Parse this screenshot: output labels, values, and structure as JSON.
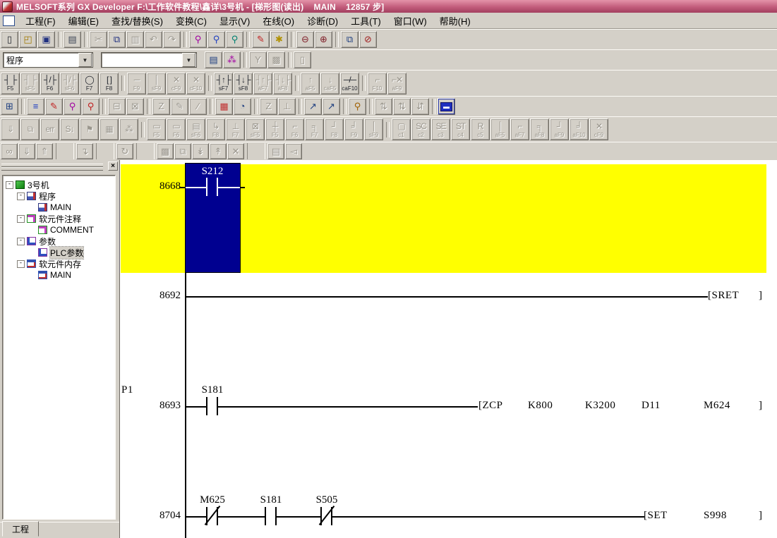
{
  "window": {
    "title": "MELSOFT系列 GX Developer F:\\工作软件教程\\鑫详\\3号机 - [梯形图(读出)    MAIN    12857 步]"
  },
  "menu": {
    "items": [
      {
        "name": "menu-project",
        "label": "工程(F)"
      },
      {
        "name": "menu-edit",
        "label": "编辑(E)"
      },
      {
        "name": "menu-find-replace",
        "label": "查找/替换(S)"
      },
      {
        "name": "menu-convert",
        "label": "变换(C)"
      },
      {
        "name": "menu-view",
        "label": "显示(V)"
      },
      {
        "name": "menu-online",
        "label": "在线(O)"
      },
      {
        "name": "menu-diagnostics",
        "label": "诊断(D)"
      },
      {
        "name": "menu-tools",
        "label": "工具(T)"
      },
      {
        "name": "menu-window",
        "label": "窗口(W)"
      },
      {
        "name": "menu-help",
        "label": "帮助(H)"
      }
    ]
  },
  "toolbar1": {
    "buttons": [
      {
        "name": "new-project-button",
        "glyph": "▯",
        "enabled": true
      },
      {
        "name": "open-project-button",
        "glyph": "◰",
        "enabled": true,
        "color": "#a07800"
      },
      {
        "name": "save-project-button",
        "glyph": "▣",
        "enabled": true,
        "color": "#203080"
      },
      {
        "sep": true
      },
      {
        "name": "print-button",
        "glyph": "▤",
        "enabled": true,
        "color": "#404858"
      },
      {
        "sep": true
      },
      {
        "name": "cut-button",
        "glyph": "✂",
        "enabled": false
      },
      {
        "name": "copy-button",
        "glyph": "⧉",
        "enabled": true,
        "color": "#203080"
      },
      {
        "name": "paste-button",
        "glyph": "▥",
        "enabled": false
      },
      {
        "name": "undo-button",
        "glyph": "↶",
        "enabled": false
      },
      {
        "name": "redo-button",
        "glyph": "↷",
        "enabled": false
      },
      {
        "sep": true
      },
      {
        "name": "find-device-button",
        "glyph": "⚲",
        "enabled": true,
        "color": "#a000a0"
      },
      {
        "name": "find-instruction-button",
        "glyph": "⚲",
        "enabled": true,
        "color": "#2040c0"
      },
      {
        "name": "find-string-button",
        "glyph": "⚲",
        "enabled": true,
        "color": "#008070"
      },
      {
        "sep": true
      },
      {
        "name": "replace-device-button",
        "glyph": "✎",
        "enabled": true,
        "color": "#c02020"
      },
      {
        "name": "replace-instruction-button",
        "glyph": "✱",
        "enabled": true,
        "color": "#b09000"
      },
      {
        "sep": true
      },
      {
        "name": "zoom-out-button",
        "glyph": "⊖",
        "enabled": true,
        "color": "#80202a"
      },
      {
        "name": "zoom-in-button",
        "glyph": "⊕",
        "enabled": true,
        "color": "#80202a"
      },
      {
        "sep": true
      },
      {
        "name": "new-window-button",
        "glyph": "⧉",
        "enabled": true,
        "color": "#204080"
      },
      {
        "name": "program-check-button",
        "glyph": "⊘",
        "enabled": true,
        "color": "#a02020"
      }
    ]
  },
  "toolbar2": {
    "program_combo_value": "程序",
    "data_combo_value": "",
    "arrow": "▼",
    "buttons": [
      {
        "name": "ladder-monitor-button",
        "glyph": "▤",
        "enabled": true,
        "color": "#204080"
      },
      {
        "name": "network-parameter-button",
        "glyph": "⁂",
        "enabled": true,
        "color": "#a000a0"
      },
      {
        "sep": true
      },
      {
        "name": "label-program-button",
        "glyph": "Y",
        "enabled": false
      },
      {
        "name": "macro-button",
        "glyph": "▩",
        "enabled": false
      },
      {
        "sep": true
      },
      {
        "name": "vertical-window-button",
        "glyph": "▯",
        "enabled": false
      }
    ]
  },
  "toolbar3": {
    "buttons": [
      {
        "name": "open-contact-button",
        "glyph": "┤ ├",
        "label": "F5",
        "enabled": true
      },
      {
        "name": "open-contact-parallel-button",
        "glyph": "┤ ├",
        "label": "sF5",
        "enabled": false
      },
      {
        "name": "closed-contact-button",
        "glyph": "┤/├",
        "label": "F6",
        "enabled": true
      },
      {
        "name": "closed-contact-parallel-button",
        "glyph": "┤/├",
        "label": "sF6",
        "enabled": false
      },
      {
        "name": "coil-button",
        "glyph": "◯",
        "label": "F7",
        "enabled": true
      },
      {
        "name": "application-instruction-button",
        "glyph": "[ ]",
        "label": "F8",
        "enabled": true
      },
      {
        "sep": true
      },
      {
        "name": "horizontal-line-button",
        "glyph": "─",
        "label": "F9",
        "enabled": false
      },
      {
        "name": "vertical-line-button",
        "glyph": "│",
        "label": "sF9",
        "enabled": false
      },
      {
        "name": "delete-horizontal-line-button",
        "glyph": "✕",
        "label": "cF9",
        "enabled": false
      },
      {
        "name": "delete-vertical-line-button",
        "glyph": "✕",
        "label": "cF10",
        "enabled": false
      },
      {
        "sep": true
      },
      {
        "name": "rising-pulse-button",
        "glyph": "┤↑├",
        "label": "sF7",
        "enabled": true
      },
      {
        "name": "falling-pulse-button",
        "glyph": "┤↓├",
        "label": "sF8",
        "enabled": true
      },
      {
        "name": "rising-pulse-parallel-button",
        "glyph": "┤↑├",
        "label": "aF7",
        "enabled": false
      },
      {
        "name": "falling-pulse-parallel-button",
        "glyph": "┤↓├",
        "label": "aF8",
        "enabled": false
      },
      {
        "sep": true
      },
      {
        "name": "pulse-up-button",
        "glyph": "↑",
        "label": "aF5",
        "enabled": false
      },
      {
        "name": "pulse-down-button",
        "glyph": "↓",
        "label": "caF5",
        "enabled": false
      },
      {
        "name": "invert-operation-button",
        "glyph": "─/─",
        "label": "caF10",
        "enabled": true
      },
      {
        "sep": true
      },
      {
        "name": "line-input-button",
        "glyph": "⌐",
        "label": "F10",
        "enabled": false
      },
      {
        "name": "delete-line-button",
        "glyph": "⌐✕",
        "label": "aF9",
        "enabled": false
      }
    ]
  },
  "toolbar4": {
    "buttons": [
      {
        "name": "ladder-list-toggle-button",
        "glyph": "⊞",
        "enabled": true,
        "color": "#204080"
      },
      {
        "sep": true
      },
      {
        "name": "comment-display-button",
        "glyph": "≡",
        "enabled": true,
        "color": "#2040c0"
      },
      {
        "name": "statement-edit-button",
        "glyph": "✎",
        "enabled": true,
        "color": "#c02020"
      },
      {
        "name": "find-contact-button",
        "glyph": "⚲",
        "enabled": true,
        "color": "#a000a0"
      },
      {
        "name": "ladder-edit-button",
        "glyph": "⚲",
        "enabled": true,
        "color": "#c02020"
      },
      {
        "sep": true
      },
      {
        "name": "device-test-button",
        "glyph": "⊟",
        "enabled": false
      },
      {
        "name": "device-test-off-button",
        "glyph": "⊠",
        "enabled": false
      },
      {
        "sep": true
      },
      {
        "name": "sampling-trace-button",
        "glyph": "Z",
        "enabled": false
      },
      {
        "name": "write-during-run-button",
        "glyph": "✎",
        "enabled": false
      },
      {
        "name": "partial-edit-button",
        "glyph": "∕",
        "enabled": false
      },
      {
        "sep": true
      },
      {
        "name": "device-batch-monitor-button",
        "glyph": "▦",
        "enabled": true,
        "color": "#c03030"
      },
      {
        "name": "monitor-watch-button",
        "glyph": "◔",
        "enabled": true,
        "color": "#204080"
      },
      {
        "sep": true
      },
      {
        "name": "z-register-button",
        "glyph": "Z",
        "enabled": false
      },
      {
        "name": "t-monitor-button",
        "glyph": "⊥",
        "enabled": false
      },
      {
        "sep": true
      },
      {
        "name": "open-window-button",
        "glyph": "↗",
        "enabled": true,
        "color": "#204080"
      },
      {
        "name": "open-window-front-button",
        "glyph": "↗",
        "enabled": true,
        "color": "#204080"
      },
      {
        "sep": true
      },
      {
        "name": "monitor-find-button",
        "glyph": "⚲",
        "enabled": true,
        "color": "#a06000"
      },
      {
        "sep": true
      },
      {
        "name": "sort-ascending-button",
        "glyph": "⇅",
        "enabled": false
      },
      {
        "name": "sort-descending-button",
        "glyph": "⇅",
        "enabled": false
      },
      {
        "name": "sort-order-button",
        "glyph": "⇵",
        "enabled": false
      },
      {
        "sep": true
      },
      {
        "name": "monitor-display-button",
        "glyph": "▬",
        "enabled": true,
        "special": true
      }
    ]
  },
  "toolbar5": {
    "buttons": [
      {
        "name": "transfer-setup-button",
        "glyph": "⇓",
        "enabled": false
      },
      {
        "name": "error-windows-button",
        "glyph": "⧉",
        "enabled": false
      },
      {
        "name": "error-jump-button",
        "glyph": "err",
        "enabled": false
      },
      {
        "name": "step-run-button",
        "glyph": "S↓",
        "enabled": false
      },
      {
        "name": "block-flag-button",
        "glyph": "⚑",
        "enabled": false
      },
      {
        "name": "partial-run-button",
        "glyph": "▦",
        "enabled": false
      },
      {
        "name": "skip-run-button",
        "glyph": "⁂",
        "enabled": false
      },
      {
        "sep": true
      },
      {
        "name": "sfc-block-button",
        "glyph": "▭",
        "label": "F5",
        "enabled": false
      },
      {
        "name": "sfc-step-button",
        "glyph": "▭",
        "label": "F6",
        "enabled": false
      },
      {
        "name": "sfc-block-comment-button",
        "glyph": "▤",
        "label": "sF6",
        "enabled": false
      },
      {
        "name": "sfc-jump-button",
        "glyph": "↳",
        "label": "F8",
        "enabled": false
      },
      {
        "name": "sfc-end-step-button",
        "glyph": "⊥",
        "label": "F7",
        "enabled": false
      },
      {
        "name": "sfc-dummy-step-button",
        "glyph": "⊠",
        "label": "sF5",
        "enabled": false
      },
      {
        "name": "sfc-transition-button",
        "glyph": "┼",
        "label": "F5",
        "enabled": false
      },
      {
        "name": "sfc-selection-divergence-button",
        "glyph": "⌐",
        "label": "F6",
        "enabled": false
      },
      {
        "name": "sfc-simultaneous-divergence-button",
        "glyph": "╕",
        "label": "F7",
        "enabled": false
      },
      {
        "name": "sfc-selection-convergence-button",
        "glyph": "┘",
        "label": "F8",
        "enabled": false
      },
      {
        "name": "sfc-simultaneous-convergence-button",
        "glyph": "╛",
        "label": "F9",
        "enabled": false
      },
      {
        "name": "sfc-vertical-line-button",
        "glyph": "│",
        "label": "sF9",
        "enabled": false
      },
      {
        "sep": true
      },
      {
        "name": "sfc-rule-c1-button",
        "glyph": "▢",
        "label": "c1",
        "enabled": false
      },
      {
        "name": "sfc-rule-sc-button",
        "glyph": "SC",
        "label": "c2",
        "enabled": false
      },
      {
        "name": "sfc-rule-se-button",
        "glyph": "SE",
        "label": "c3",
        "enabled": false
      },
      {
        "name": "sfc-rule-st-button",
        "glyph": "ST",
        "label": "c4",
        "enabled": false
      },
      {
        "name": "sfc-rule-r-button",
        "glyph": "R",
        "label": "c5",
        "enabled": false
      },
      {
        "name": "sfc-line-af5-button",
        "glyph": "│",
        "label": "aF5",
        "enabled": false
      },
      {
        "name": "sfc-line-af7-button",
        "glyph": "⌐",
        "label": "aF7",
        "enabled": false
      },
      {
        "name": "sfc-line-af8-button",
        "glyph": "╕",
        "label": "aF8",
        "enabled": false
      },
      {
        "name": "sfc-line-af9-button",
        "glyph": "┘",
        "label": "aF9",
        "enabled": false
      },
      {
        "name": "sfc-line-af10-button",
        "glyph": "╛",
        "label": "aF10",
        "enabled": false
      },
      {
        "name": "sfc-delete-line-button",
        "glyph": "✕",
        "label": "cF9",
        "enabled": false
      }
    ]
  },
  "toolbar6": {
    "buttons": [
      {
        "name": "find-binoculars-button",
        "glyph": "∞",
        "enabled": false
      },
      {
        "name": "find-next-down-button",
        "glyph": "⇓",
        "enabled": false
      },
      {
        "name": "find-next-up-button",
        "glyph": "⇑",
        "enabled": false
      },
      {
        "sep": true
      },
      {
        "name": "jump-button",
        "glyph": "↴",
        "enabled": false
      },
      {
        "sep": true
      },
      {
        "name": "cross-reference-button",
        "glyph": "↻",
        "enabled": false
      },
      {
        "sep": true
      },
      {
        "name": "pattern-button",
        "glyph": "▩",
        "enabled": false
      },
      {
        "name": "layered-windows-button",
        "glyph": "⧉",
        "enabled": false
      },
      {
        "name": "insert-row-below-button",
        "glyph": "↡",
        "enabled": false
      },
      {
        "name": "insert-row-above-button",
        "glyph": "↟",
        "enabled": false
      },
      {
        "name": "delete-row-button",
        "glyph": "✕",
        "enabled": false
      },
      {
        "sep": true
      },
      {
        "name": "print-area-button",
        "glyph": "▤",
        "enabled": false
      },
      {
        "name": "alert-button",
        "glyph": "◅",
        "enabled": false
      }
    ]
  },
  "sidebar": {
    "close_label": "×",
    "tab_label": "工程",
    "tree": [
      {
        "name": "tree-item-project-root",
        "label": "3号机",
        "level": 0,
        "expand": "-",
        "icon": "icon-project"
      },
      {
        "name": "tree-item-program",
        "label": "程序",
        "level": 1,
        "expand": "-",
        "icon": "icon-program"
      },
      {
        "name": "tree-item-program-main",
        "label": "MAIN",
        "level": 2,
        "expand": "",
        "icon": "icon-program"
      },
      {
        "name": "tree-item-device-comment",
        "label": "软元件注释",
        "level": 1,
        "expand": "-",
        "icon": "icon-comment"
      },
      {
        "name": "tree-item-comment",
        "label": "COMMENT",
        "level": 2,
        "expand": "",
        "icon": "icon-comment"
      },
      {
        "name": "tree-item-parameter",
        "label": "参数",
        "level": 1,
        "expand": "-",
        "icon": "icon-param"
      },
      {
        "name": "tree-item-plc-parameter",
        "label": "PLC参数",
        "level": 2,
        "expand": "",
        "icon": "icon-param",
        "selected": true
      },
      {
        "name": "tree-item-device-memory",
        "label": "软元件内存",
        "level": 1,
        "expand": "-",
        "icon": "icon-memory"
      },
      {
        "name": "tree-item-memory-main",
        "label": "MAIN",
        "level": 2,
        "expand": "",
        "icon": "icon-memory"
      }
    ]
  },
  "ladder": {
    "highlight_color": "#ffff00",
    "cursor_color": "#000090",
    "rung1": {
      "step": "8668",
      "c1": "S212"
    },
    "rung2": {
      "step": "8692",
      "instr": "[SRET",
      "end": "]"
    },
    "rung3": {
      "pointer": "P1",
      "step": "8693",
      "c1": "S181",
      "instr": "[ZCP",
      "op1": "K800",
      "op2": "K3200",
      "op3": "D11",
      "op4": "M624",
      "end": "]"
    },
    "rung4": {
      "step": "8704",
      "c1": "M625",
      "c2": "S181",
      "c3": "S505",
      "instr": "[SET",
      "op1": "S998",
      "end": "]"
    }
  }
}
